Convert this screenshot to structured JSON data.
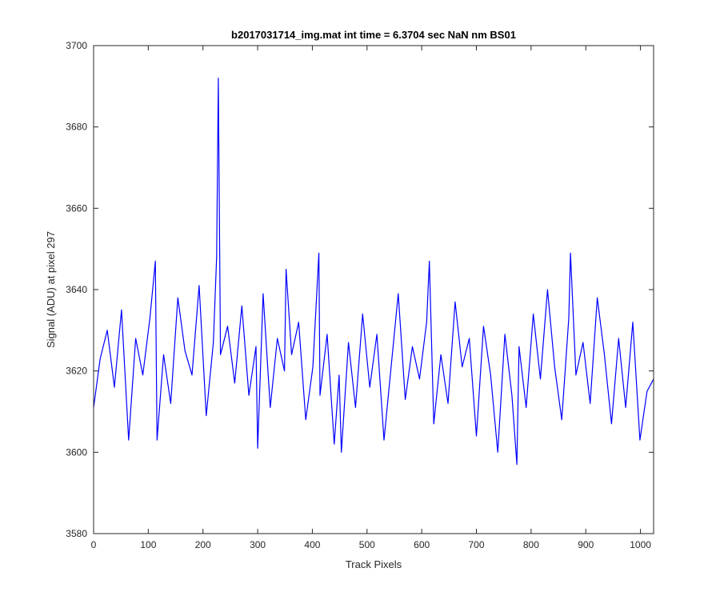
{
  "chart_data": {
    "type": "line",
    "title": "b2017031714_img.mat int time = 6.3704 sec  NaN nm BS01",
    "xlabel": "Track Pixels",
    "ylabel": "Signal (ADU) at pixel 297",
    "xlim": [
      0,
      1024
    ],
    "ylim": [
      3580,
      3700
    ],
    "xticks": [
      0,
      100,
      200,
      300,
      400,
      500,
      600,
      700,
      800,
      900,
      1000
    ],
    "yticks": [
      3580,
      3600,
      3620,
      3640,
      3660,
      3680,
      3700
    ],
    "grid": false,
    "line_color": "#0000ff",
    "series": [
      {
        "x": [
          0,
          12,
          25,
          38,
          51,
          64,
          77,
          90,
          103,
          113,
          116,
          128,
          141,
          154,
          167,
          180,
          193,
          206,
          219,
          225,
          228,
          232,
          245,
          258,
          271,
          284,
          297,
          300,
          310,
          323,
          336,
          349,
          352,
          362,
          375,
          388,
          401,
          412,
          414,
          427,
          440,
          449,
          453,
          466,
          479,
          492,
          505,
          518,
          531,
          544,
          557,
          570,
          583,
          596,
          609,
          614,
          622,
          635,
          648,
          661,
          674,
          687,
          700,
          713,
          726,
          739,
          752,
          765,
          774,
          778,
          791,
          804,
          817,
          830,
          843,
          856,
          869,
          872,
          882,
          895,
          908,
          921,
          934,
          947,
          960,
          973,
          986,
          999,
          1012,
          1024
        ],
        "values": [
          3611,
          3623,
          3630,
          3616,
          3635,
          3603,
          3628,
          3619,
          3633,
          3647,
          3603,
          3624,
          3612,
          3638,
          3625,
          3619,
          3641,
          3609,
          3627,
          3648,
          3692,
          3624,
          3631,
          3617,
          3636,
          3614,
          3626,
          3601,
          3639,
          3611,
          3628,
          3620,
          3645,
          3624,
          3632,
          3608,
          3621,
          3649,
          3614,
          3629,
          3602,
          3619,
          3600,
          3627,
          3611,
          3634,
          3616,
          3629,
          3603,
          3621,
          3639,
          3613,
          3626,
          3618,
          3632,
          3647,
          3607,
          3624,
          3612,
          3637,
          3621,
          3628,
          3604,
          3631,
          3619,
          3600,
          3629,
          3614,
          3597,
          3626,
          3611,
          3634,
          3618,
          3640,
          3621,
          3608,
          3633,
          3649,
          3619,
          3627,
          3612,
          3638,
          3624,
          3607,
          3628,
          3611,
          3632,
          3603,
          3615,
          3618
        ]
      }
    ]
  }
}
